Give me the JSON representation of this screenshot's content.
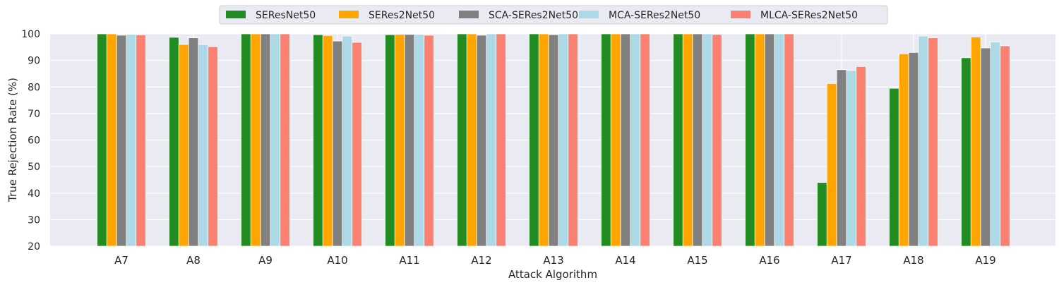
{
  "chart_data": {
    "type": "bar",
    "title": "",
    "xlabel": "Attack Algorithm",
    "ylabel": "True Rejection Rate (%)",
    "ylim": [
      20,
      100
    ],
    "yticks": [
      20,
      30,
      40,
      50,
      60,
      70,
      80,
      90,
      100
    ],
    "grid": true,
    "legend_position": "top-center",
    "categories": [
      "A7",
      "A8",
      "A9",
      "A10",
      "A11",
      "A12",
      "A13",
      "A14",
      "A15",
      "A16",
      "A17",
      "A18",
      "A19"
    ],
    "series": [
      {
        "name": "SEResNet50",
        "color": "#228b22",
        "values": [
          100,
          98.7,
          100,
          99.7,
          99.7,
          100,
          100,
          100,
          100,
          100,
          44.0,
          79.5,
          91.0
        ]
      },
      {
        "name": "SERes2Net50",
        "color": "#ffa500",
        "values": [
          100,
          96.0,
          100,
          99.4,
          99.8,
          100,
          100,
          100,
          100,
          100,
          81.3,
          92.5,
          98.8
        ]
      },
      {
        "name": "SCA-SERes2Net50",
        "color": "#808080",
        "values": [
          99.5,
          98.5,
          100,
          97.3,
          99.8,
          99.5,
          99.7,
          100,
          100,
          100,
          86.5,
          93.0,
          94.7
        ]
      },
      {
        "name": "MCA-SERes2Net50",
        "color": "#add8e6",
        "values": [
          99.8,
          96.0,
          100,
          99.2,
          99.8,
          100,
          100,
          100,
          100,
          100,
          86.2,
          99.2,
          97.0
        ]
      },
      {
        "name": "MLCA-SERes2Net50",
        "color": "#fa8072",
        "values": [
          99.6,
          95.2,
          100,
          96.8,
          99.5,
          100,
          100,
          100,
          99.8,
          100,
          87.7,
          98.5,
          95.5
        ]
      }
    ]
  }
}
